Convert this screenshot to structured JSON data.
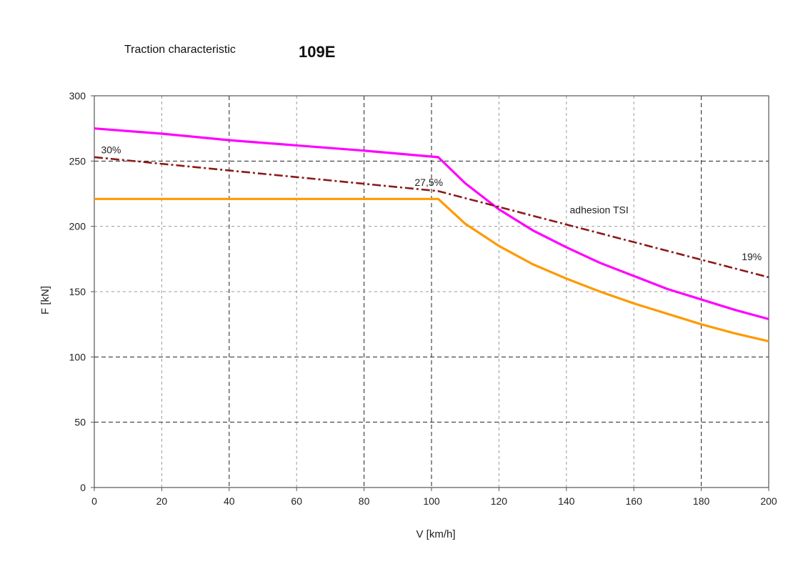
{
  "chart_data": {
    "type": "line",
    "title": "Traction characteristic",
    "subtitle": "109E",
    "xlabel": "V [km/h]",
    "ylabel": "F [kN]",
    "xlim": [
      0,
      200
    ],
    "ylim": [
      0,
      300
    ],
    "xticks": [
      0,
      20,
      40,
      60,
      80,
      100,
      120,
      140,
      160,
      180,
      200
    ],
    "yticks": [
      0,
      50,
      100,
      150,
      200,
      250,
      300
    ],
    "grid": true,
    "legend": "none",
    "series": [
      {
        "color": "#ff00ff",
        "style": "solid",
        "x": [
          0,
          20,
          40,
          60,
          80,
          102,
          110,
          120,
          130,
          140,
          150,
          160,
          170,
          180,
          190,
          200
        ],
        "y": [
          275,
          271,
          266,
          262,
          258,
          253,
          233,
          213,
          197,
          184,
          172,
          162,
          152,
          144,
          136,
          129
        ]
      },
      {
        "color": "#ff9900",
        "style": "solid",
        "x": [
          0,
          20,
          40,
          60,
          80,
          102,
          110,
          120,
          130,
          140,
          150,
          160,
          170,
          180,
          190,
          200
        ],
        "y": [
          221,
          221,
          221,
          221,
          221,
          221,
          202,
          185,
          171,
          160,
          150,
          141,
          133,
          125,
          118,
          112
        ]
      },
      {
        "color": "#8b1a1a",
        "style": "dash-dot",
        "x": [
          0,
          102,
          200
        ],
        "y": [
          253,
          227,
          161
        ]
      }
    ],
    "annotations": [
      {
        "text": "30%",
        "x": 2,
        "y": 256
      },
      {
        "text": "27,5%",
        "x": 95,
        "y": 231
      },
      {
        "text": "adhesion  TSI",
        "x": 141,
        "y": 210
      },
      {
        "text": "19%",
        "x": 192,
        "y": 174
      }
    ]
  }
}
